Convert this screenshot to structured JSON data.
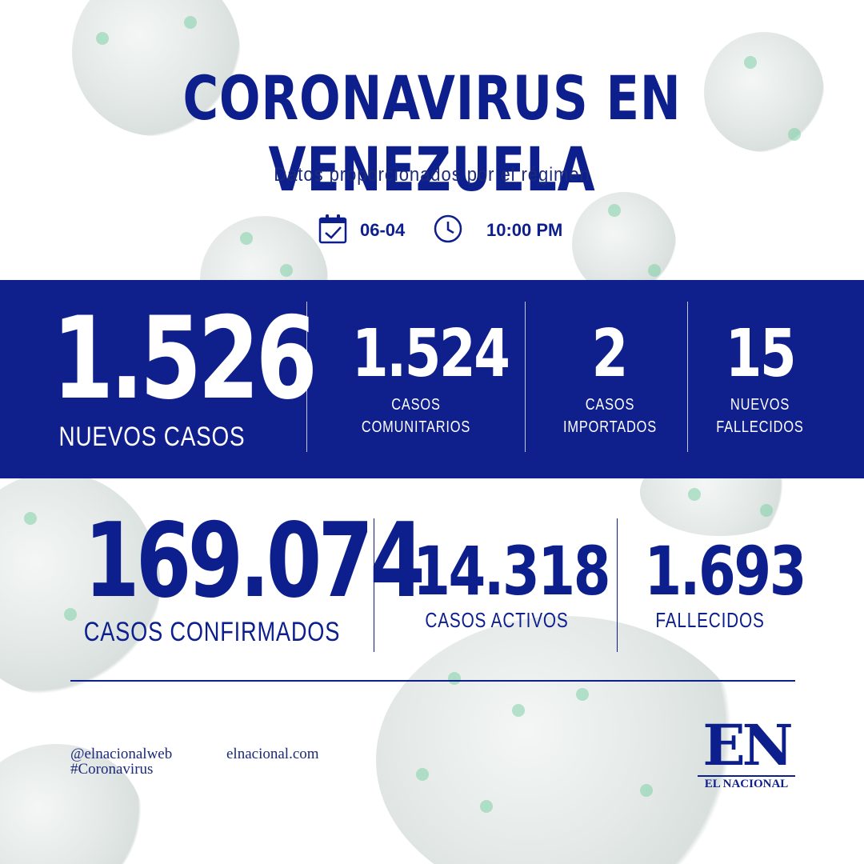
{
  "header": {
    "title": "CORONAVIRUS EN VENEZUELA",
    "subtitle": "Datos proporcionados por el régimen",
    "date": "06-04",
    "time": "10:00 PM"
  },
  "daily": {
    "nuevos_casos": {
      "value": "1.526",
      "label": "NUEVOS CASOS"
    },
    "comunitarios": {
      "value": "1.524",
      "label_line1": "CASOS",
      "label_line2": "COMUNITARIOS"
    },
    "importados": {
      "value": "2",
      "label_line1": "CASOS",
      "label_line2": "IMPORTADOS"
    },
    "fallecidos": {
      "value": "15",
      "label_line1": "NUEVOS",
      "label_line2": "FALLECIDOS"
    }
  },
  "totals": {
    "confirmados": {
      "value": "169.074",
      "label": "CASOS CONFIRMADOS"
    },
    "activos": {
      "value": "14.318",
      "label": "CASOS ACTIVOS"
    },
    "fallecidos": {
      "value": "1.693",
      "label": "FALLECIDOS"
    }
  },
  "footer": {
    "handle": "@elnacionalweb",
    "hashtag": "#Coronavirus",
    "website": "elnacional.com",
    "logo_mark": "EN",
    "logo_name": "EL NACIONAL"
  },
  "colors": {
    "primary": "#0f1f8c",
    "background": "#ffffff"
  },
  "icons": [
    "calendar-check-icon",
    "clock-icon"
  ]
}
